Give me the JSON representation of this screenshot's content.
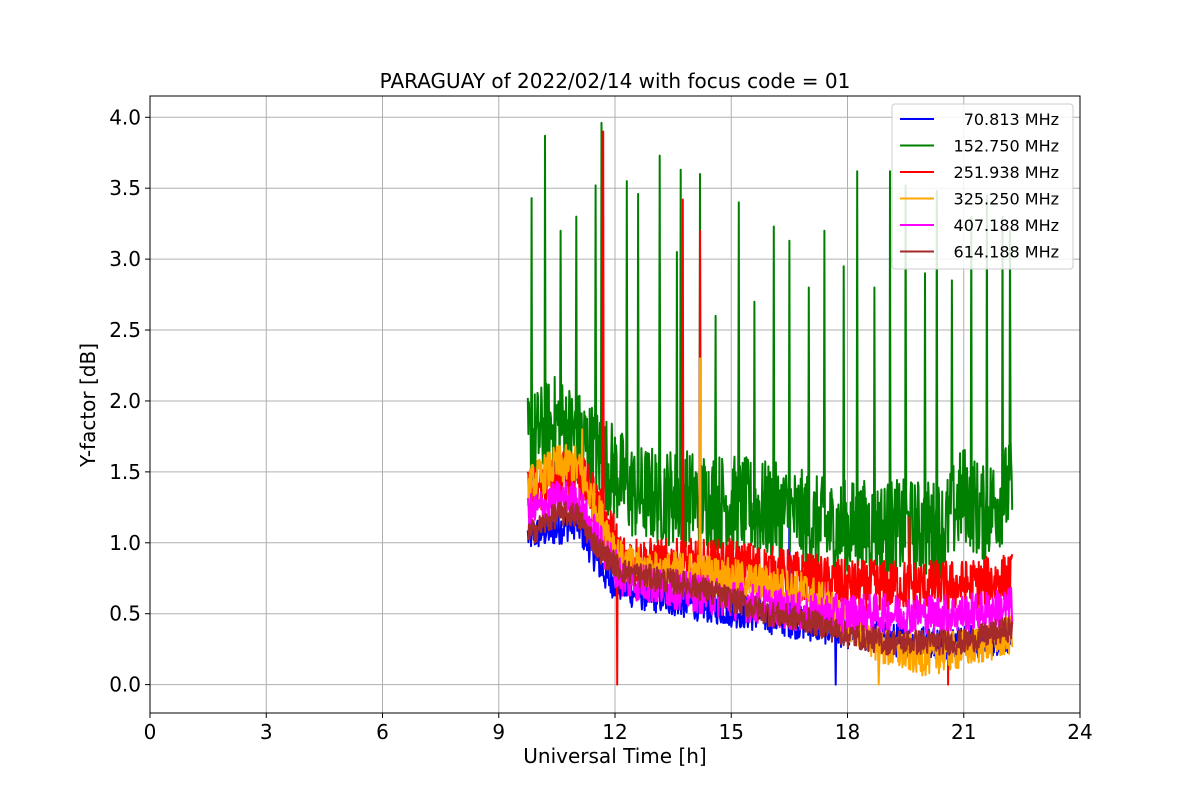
{
  "chart_data": {
    "type": "line",
    "title": "PARAGUAY of 2022/02/14 with focus code = 01",
    "xlabel": "Universal Time [h]",
    "ylabel": "Y-factor [dB]",
    "xlim": [
      0,
      24
    ],
    "ylim": [
      -0.2,
      4.15
    ],
    "xticks": [
      "0",
      "3",
      "6",
      "9",
      "12",
      "15",
      "18",
      "21",
      "24"
    ],
    "yticks": [
      "0.0",
      "0.5",
      "1.0",
      "1.5",
      "2.0",
      "2.5",
      "3.0",
      "3.5",
      "4.0"
    ],
    "grid": true,
    "legend_position": "top-right",
    "time_range_h": [
      9.75,
      22.25
    ],
    "series": [
      {
        "name": " 70.813 MHz",
        "color": "#0000ff",
        "level": [
          [
            9.75,
            1.05
          ],
          [
            10.5,
            1.1
          ],
          [
            11.0,
            1.15
          ],
          [
            11.8,
            0.75
          ],
          [
            12.5,
            0.65
          ],
          [
            13.5,
            0.6
          ],
          [
            14.5,
            0.55
          ],
          [
            15.5,
            0.5
          ],
          [
            16.5,
            0.45
          ],
          [
            17.5,
            0.4
          ],
          [
            18.5,
            0.35
          ],
          [
            19.5,
            0.3
          ],
          [
            20.5,
            0.3
          ],
          [
            21.5,
            0.3
          ],
          [
            22.25,
            0.35
          ]
        ],
        "noise": 0.12,
        "spikes": [
          [
            16.5,
            1.33
          ],
          [
            17.7,
            0.0
          ]
        ]
      },
      {
        "name": "152.750 MHz",
        "color": "#008000",
        "level": [
          [
            9.75,
            1.7
          ],
          [
            10.5,
            1.85
          ],
          [
            11.2,
            1.7
          ],
          [
            11.8,
            1.55
          ],
          [
            12.5,
            1.35
          ],
          [
            14.5,
            1.3
          ],
          [
            15.5,
            1.25
          ],
          [
            16.5,
            1.2
          ],
          [
            17.5,
            1.1
          ],
          [
            18.5,
            1.1
          ],
          [
            19.5,
            1.1
          ],
          [
            20.5,
            1.1
          ],
          [
            21.0,
            1.35
          ],
          [
            21.5,
            1.2
          ],
          [
            22.25,
            1.4
          ]
        ],
        "noise": 0.35,
        "spikes": [
          [
            9.85,
            3.43
          ],
          [
            10.2,
            3.87
          ],
          [
            10.6,
            3.2
          ],
          [
            11.0,
            3.3
          ],
          [
            11.5,
            3.52
          ],
          [
            11.65,
            3.96
          ],
          [
            12.3,
            3.55
          ],
          [
            12.6,
            3.46
          ],
          [
            13.15,
            3.73
          ],
          [
            13.6,
            3.05
          ],
          [
            13.7,
            3.63
          ],
          [
            14.2,
            3.6
          ],
          [
            14.6,
            2.6
          ],
          [
            15.2,
            3.4
          ],
          [
            15.6,
            2.7
          ],
          [
            16.1,
            3.23
          ],
          [
            16.5,
            3.13
          ],
          [
            17.0,
            2.8
          ],
          [
            17.4,
            3.2
          ],
          [
            17.9,
            2.95
          ],
          [
            18.25,
            3.62
          ],
          [
            18.7,
            2.8
          ],
          [
            19.1,
            3.62
          ],
          [
            19.5,
            3.52
          ],
          [
            20.0,
            2.9
          ],
          [
            20.3,
            3.48
          ],
          [
            20.7,
            2.85
          ],
          [
            21.2,
            3.3
          ],
          [
            21.6,
            3.45
          ],
          [
            22.0,
            3.3
          ],
          [
            22.2,
            3.2
          ]
        ]
      },
      {
        "name": "251.938 MHz",
        "color": "#ff0000",
        "level": [
          [
            9.75,
            1.35
          ],
          [
            10.5,
            1.45
          ],
          [
            11.0,
            1.5
          ],
          [
            11.6,
            1.25
          ],
          [
            12.2,
            0.9
          ],
          [
            13.0,
            0.85
          ],
          [
            14.0,
            0.85
          ],
          [
            15.0,
            0.85
          ],
          [
            16.0,
            0.8
          ],
          [
            17.0,
            0.75
          ],
          [
            18.0,
            0.7
          ],
          [
            19.0,
            0.7
          ],
          [
            20.0,
            0.7
          ],
          [
            21.0,
            0.7
          ],
          [
            22.25,
            0.75
          ]
        ],
        "noise": 0.18,
        "spikes": [
          [
            11.7,
            3.9
          ],
          [
            13.75,
            3.42
          ],
          [
            14.2,
            3.2
          ],
          [
            12.05,
            0.0
          ],
          [
            20.6,
            0.0
          ],
          [
            19.6,
            1.18
          ]
        ]
      },
      {
        "name": "325.250 MHz",
        "color": "#ffa500",
        "level": [
          [
            9.75,
            1.4
          ],
          [
            10.5,
            1.55
          ],
          [
            11.0,
            1.55
          ],
          [
            11.6,
            1.2
          ],
          [
            12.2,
            0.85
          ],
          [
            13.0,
            0.8
          ],
          [
            14.0,
            0.8
          ],
          [
            15.0,
            0.75
          ],
          [
            16.0,
            0.7
          ],
          [
            17.0,
            0.65
          ],
          [
            18.0,
            0.45
          ],
          [
            19.0,
            0.25
          ],
          [
            20.0,
            0.2
          ],
          [
            21.0,
            0.25
          ],
          [
            22.25,
            0.35
          ]
        ],
        "noise": 0.14,
        "spikes": [
          [
            14.2,
            2.3
          ],
          [
            11.15,
            1.8
          ],
          [
            18.8,
            0.0
          ]
        ]
      },
      {
        "name": "407.188 MHz",
        "color": "#ff00ff",
        "level": [
          [
            9.75,
            1.2
          ],
          [
            10.5,
            1.3
          ],
          [
            11.0,
            1.3
          ],
          [
            11.6,
            1.0
          ],
          [
            12.2,
            0.75
          ],
          [
            13.0,
            0.7
          ],
          [
            14.0,
            0.65
          ],
          [
            15.0,
            0.6
          ],
          [
            16.0,
            0.55
          ],
          [
            17.0,
            0.5
          ],
          [
            18.0,
            0.5
          ],
          [
            19.0,
            0.5
          ],
          [
            20.0,
            0.5
          ],
          [
            21.0,
            0.5
          ],
          [
            22.25,
            0.55
          ]
        ],
        "noise": 0.14,
        "spikes": []
      },
      {
        "name": "614.188 MHz",
        "color": "#a52a2a",
        "level": [
          [
            9.75,
            1.05
          ],
          [
            10.5,
            1.2
          ],
          [
            11.0,
            1.2
          ],
          [
            11.6,
            0.95
          ],
          [
            12.2,
            0.8
          ],
          [
            13.0,
            0.75
          ],
          [
            14.0,
            0.7
          ],
          [
            15.0,
            0.6
          ],
          [
            16.0,
            0.5
          ],
          [
            17.0,
            0.45
          ],
          [
            18.0,
            0.35
          ],
          [
            19.0,
            0.3
          ],
          [
            20.0,
            0.3
          ],
          [
            21.0,
            0.3
          ],
          [
            22.25,
            0.4
          ]
        ],
        "noise": 0.09,
        "spikes": []
      }
    ]
  }
}
